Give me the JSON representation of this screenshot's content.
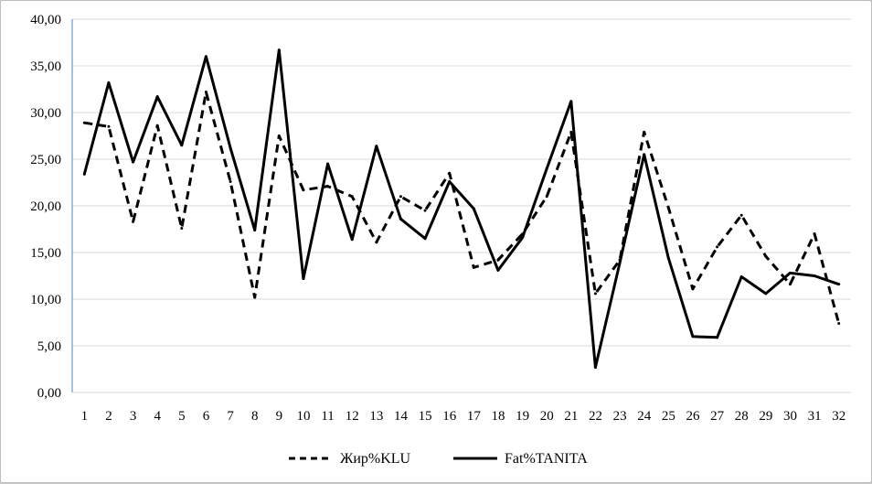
{
  "chart_data": {
    "type": "line",
    "title": "",
    "xlabel": "",
    "ylabel": "",
    "x": [
      "1",
      "2",
      "3",
      "4",
      "5",
      "6",
      "7",
      "8",
      "9",
      "10",
      "11",
      "12",
      "13",
      "14",
      "15",
      "16",
      "17",
      "18",
      "19",
      "20",
      "21",
      "22",
      "23",
      "24",
      "25",
      "26",
      "27",
      "28",
      "29",
      "30",
      "31",
      "32"
    ],
    "ylim": [
      0,
      40
    ],
    "yticks": [
      "0,00",
      "5,00",
      "10,00",
      "15,00",
      "20,00",
      "25,00",
      "30,00",
      "35,00",
      "40,00"
    ],
    "grid": true,
    "legend_position": "bottom",
    "series": [
      {
        "name": "Жир%KLU",
        "style": "dashed",
        "color": "#000000",
        "values": [
          28.9,
          28.5,
          18.3,
          28.6,
          17.6,
          32.2,
          22.6,
          10.2,
          27.5,
          21.7,
          22.1,
          21.0,
          16.1,
          21.0,
          19.5,
          23.5,
          13.4,
          14.2,
          17.0,
          21.0,
          27.9,
          10.6,
          14.2,
          27.9,
          19.8,
          11.1,
          15.6,
          19.0,
          14.6,
          11.6,
          17.0,
          7.4
        ]
      },
      {
        "name": "Fat%TANITA",
        "style": "solid",
        "color": "#000000",
        "values": [
          23.4,
          33.2,
          24.7,
          31.7,
          26.5,
          36.0,
          26.2,
          17.4,
          36.7,
          12.2,
          24.5,
          16.4,
          26.4,
          18.6,
          16.5,
          22.6,
          19.7,
          13.1,
          16.6,
          24.0,
          31.2,
          2.7,
          13.9,
          25.5,
          14.4,
          6.0,
          5.9,
          12.4,
          10.6,
          12.8,
          12.5,
          11.6
        ]
      }
    ]
  }
}
